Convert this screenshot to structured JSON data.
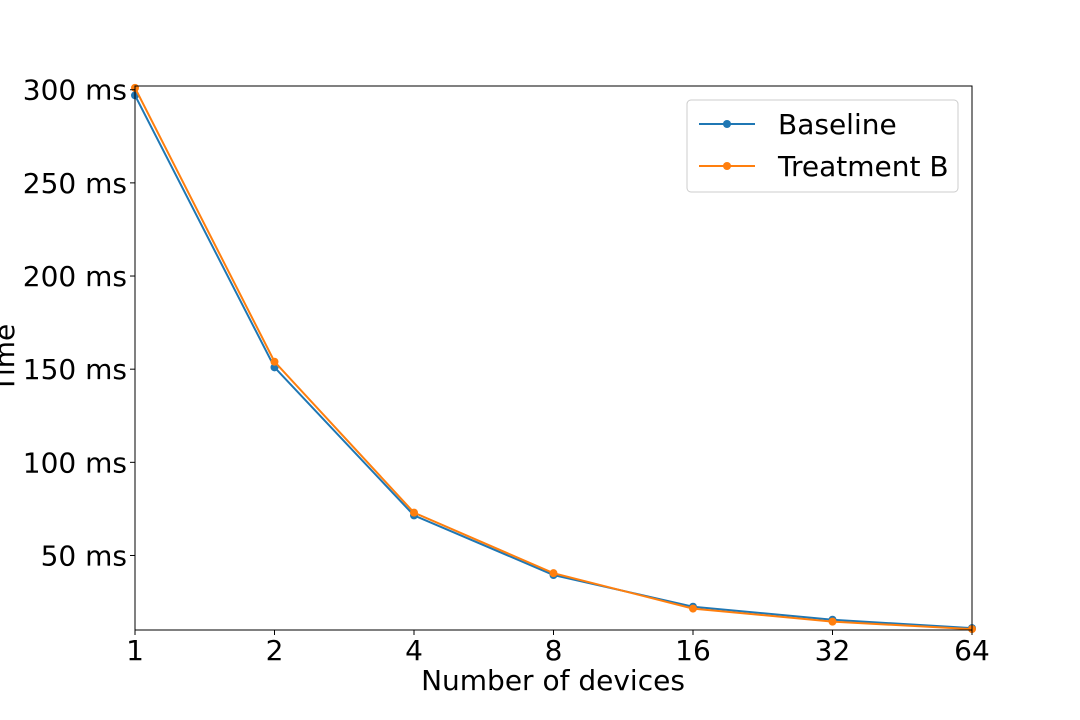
{
  "chart_data": {
    "type": "line",
    "xlabel": "Number of devices",
    "ylabel": "Time",
    "x": [
      1,
      2,
      4,
      8,
      16,
      32,
      64
    ],
    "x_tick_labels": [
      "1",
      "2",
      "4",
      "8",
      "16",
      "32",
      "64"
    ],
    "x_scale": "log2",
    "xlim": [
      1,
      64
    ],
    "y_unit": "ms",
    "ylim": [
      10,
      302
    ],
    "y_ticks": [
      50,
      100,
      150,
      200,
      250,
      300
    ],
    "y_tick_labels": [
      "50 ms",
      "100 ms",
      "150 ms",
      "200 ms",
      "250 ms",
      "300 ms"
    ],
    "grid": false,
    "legend_position": "top-right",
    "series": [
      {
        "name": "Baseline",
        "color": "#1f77b4",
        "marker": "circle",
        "values": [
          297,
          151,
          71.5,
          39.5,
          22.5,
          15.5,
          11
        ]
      },
      {
        "name": "Treatment B",
        "color": "#ff7f0e",
        "marker": "circle",
        "values": [
          301,
          154,
          73,
          40.5,
          21.5,
          14.5,
          10.5
        ]
      }
    ]
  }
}
